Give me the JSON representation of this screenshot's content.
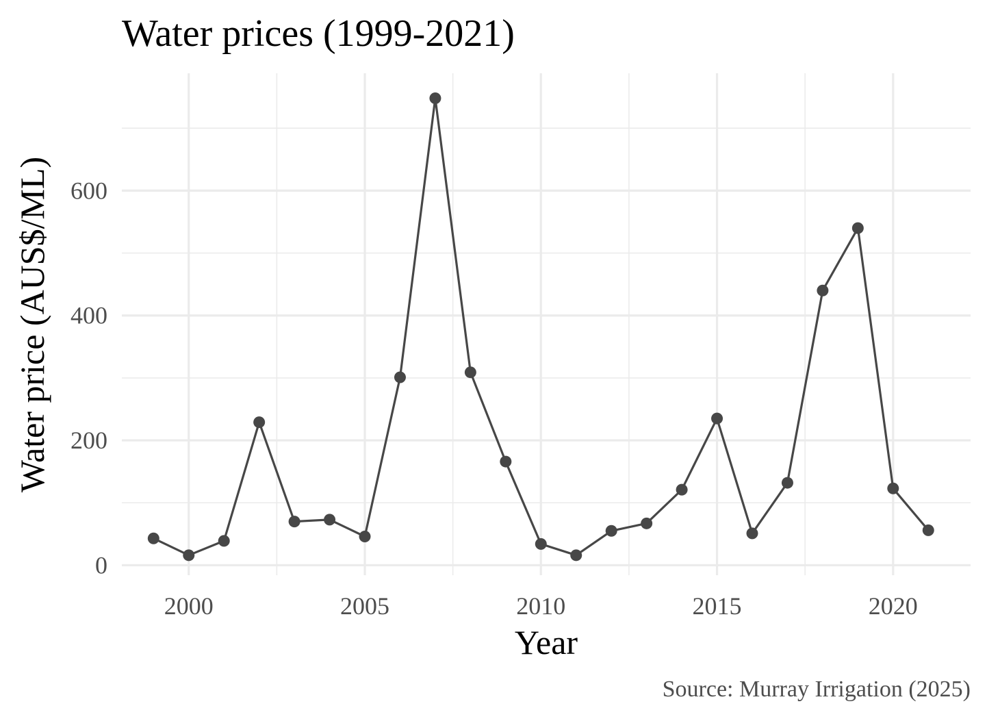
{
  "chart_data": {
    "type": "line",
    "title": "Water prices (1999-2021)",
    "xlabel": "Year",
    "ylabel": "Water price (AUS$/ML)",
    "caption": "Source: Murray Irrigation (2025)",
    "x": [
      1999,
      2000,
      2001,
      2002,
      2003,
      2004,
      2005,
      2006,
      2007,
      2008,
      2009,
      2010,
      2011,
      2012,
      2013,
      2014,
      2015,
      2016,
      2017,
      2018,
      2019,
      2020,
      2021
    ],
    "series": [
      {
        "values": [
          43,
          16,
          39,
          229,
          70,
          73,
          46,
          301,
          748,
          309,
          166,
          34,
          16,
          55,
          67,
          121,
          235,
          51,
          132,
          440,
          540,
          123,
          56
        ]
      }
    ],
    "xlim": [
      1998.1,
      2022.2
    ],
    "ylim": [
      -16,
      788
    ],
    "x_ticks": [
      2000,
      2005,
      2010,
      2015,
      2020
    ],
    "x_tick_labels": [
      "2000",
      "2005",
      "2010",
      "2015",
      "2020"
    ],
    "x_minor_ticks": [
      2002.5,
      2007.5,
      2012.5,
      2017.5
    ],
    "y_ticks": [
      0,
      200,
      400,
      600
    ],
    "y_tick_labels": [
      "0",
      "200",
      "400",
      "600"
    ],
    "y_minor_ticks": [
      100,
      300,
      500,
      700
    ],
    "grid": true,
    "legend": "none",
    "line_color": "#474747",
    "grid_color": "#ebebeb"
  }
}
